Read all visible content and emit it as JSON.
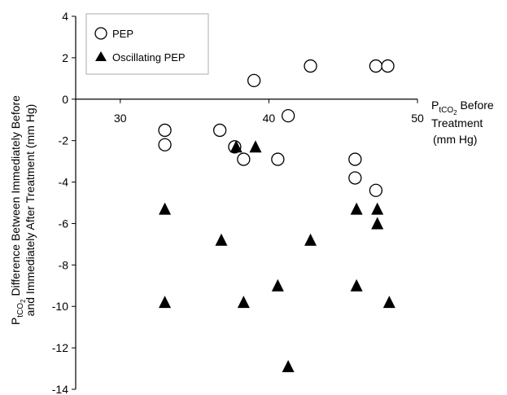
{
  "chart_data": {
    "type": "scatter",
    "title": "",
    "xlabel": {
      "prefix": "P",
      "subscript": "tCO",
      "sub_sub": "2",
      "line1_suffix": " Before",
      "line2": "Treatment",
      "line3": "(mm Hg)"
    },
    "ylabel": {
      "prefix": "P",
      "subscript": "tCO",
      "sub_sub": "2",
      "line1_suffix": " Difference Between Immediately Before",
      "line2": "and Immediately After Treatment (mm Hg)"
    },
    "xlim": [
      27,
      50
    ],
    "ylim": [
      -14,
      4
    ],
    "x_ticks": [
      30,
      40,
      50
    ],
    "y_ticks": [
      4,
      2,
      0,
      -2,
      -4,
      -6,
      -8,
      -10,
      -12,
      -14
    ],
    "grid": false,
    "legend_position": "top-left",
    "series": [
      {
        "name": "PEP",
        "marker": "open-circle",
        "points": [
          {
            "x": 33,
            "y": -1.5
          },
          {
            "x": 33,
            "y": -2.2
          },
          {
            "x": 36.7,
            "y": -1.5
          },
          {
            "x": 37.7,
            "y": -2.3
          },
          {
            "x": 38.3,
            "y": -2.9
          },
          {
            "x": 39,
            "y": 0.9
          },
          {
            "x": 40.6,
            "y": -2.9
          },
          {
            "x": 41.3,
            "y": -0.8
          },
          {
            "x": 42.8,
            "y": 1.6
          },
          {
            "x": 45.8,
            "y": -2.9
          },
          {
            "x": 45.8,
            "y": -3.8
          },
          {
            "x": 47.2,
            "y": 1.6
          },
          {
            "x": 47.2,
            "y": -4.4
          },
          {
            "x": 48,
            "y": 1.6
          }
        ]
      },
      {
        "name": "Oscillating PEP",
        "marker": "filled-triangle",
        "points": [
          {
            "x": 33,
            "y": -5.3
          },
          {
            "x": 33,
            "y": -9.8
          },
          {
            "x": 36.8,
            "y": -6.8
          },
          {
            "x": 37.8,
            "y": -2.3
          },
          {
            "x": 38.3,
            "y": -9.8
          },
          {
            "x": 39.1,
            "y": -2.3
          },
          {
            "x": 40.6,
            "y": -9
          },
          {
            "x": 41.3,
            "y": -12.9
          },
          {
            "x": 42.8,
            "y": -6.8
          },
          {
            "x": 45.9,
            "y": -5.3
          },
          {
            "x": 45.9,
            "y": -9
          },
          {
            "x": 47.3,
            "y": -5.3
          },
          {
            "x": 47.3,
            "y": -6
          },
          {
            "x": 48.1,
            "y": -9.8
          }
        ]
      }
    ]
  }
}
